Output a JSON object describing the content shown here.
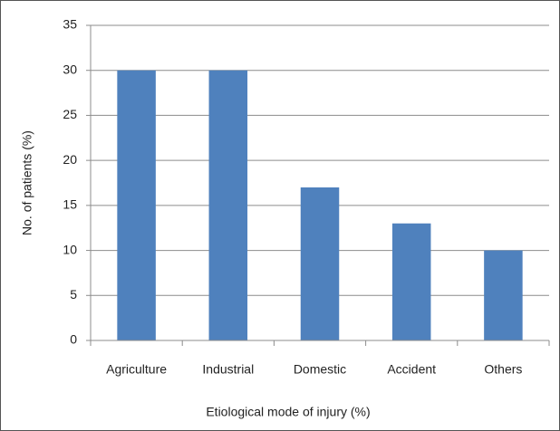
{
  "chart_data": {
    "type": "bar",
    "categories": [
      "Agriculture",
      "Industrial",
      "Domestic",
      "Accident",
      "Others"
    ],
    "values": [
      30,
      30,
      17,
      13,
      10
    ],
    "color": "#4f81bd",
    "xlabel": "Etiological mode of injury (%)",
    "ylabel": "No. of patients (%)",
    "ylim": [
      0,
      35
    ],
    "yticks": [
      0,
      5,
      10,
      15,
      20,
      25,
      30,
      35
    ],
    "grid": true
  }
}
